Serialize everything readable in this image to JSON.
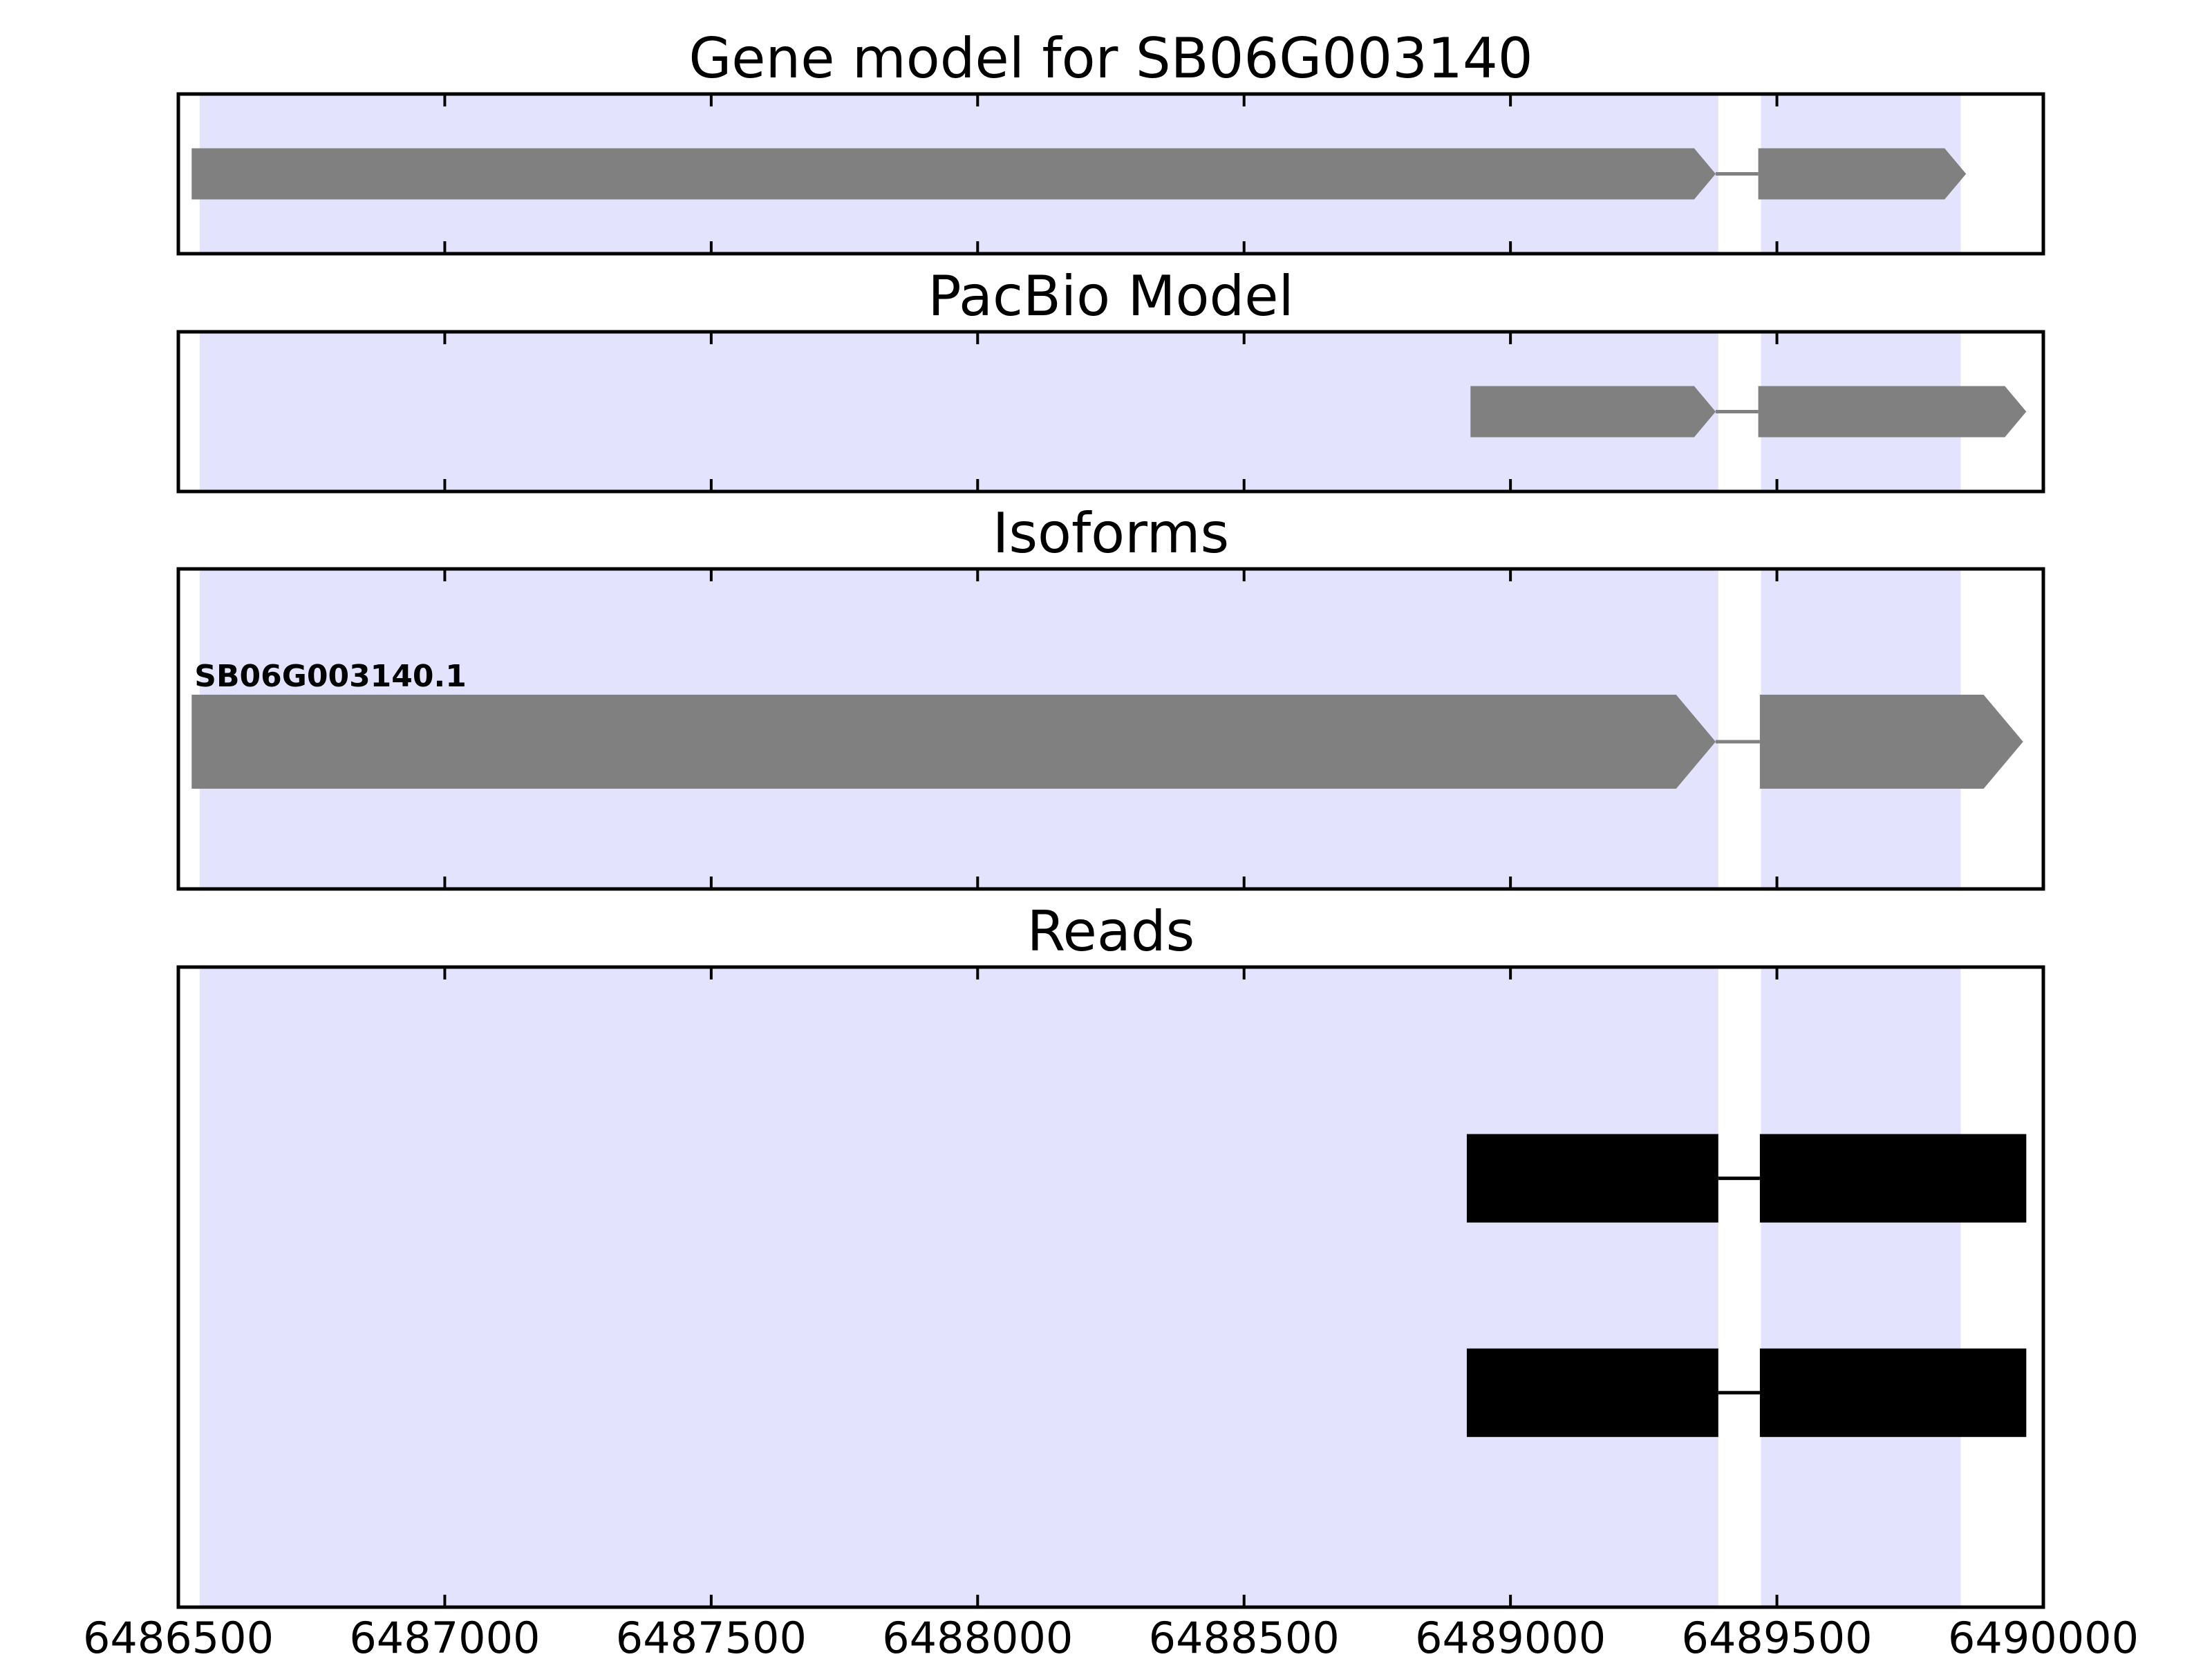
{
  "chart_data": {
    "type": "gene-model",
    "x_range": [
      6486500,
      6490000
    ],
    "x_ticks": [
      6486500,
      6487000,
      6487500,
      6488000,
      6488500,
      6489000,
      6489500,
      6490000
    ],
    "x_tick_labels": [
      "6486500",
      "6487000",
      "6487500",
      "6488000",
      "6488500",
      "6489000",
      "6489500",
      "6490000"
    ],
    "grid": false,
    "shaded_regions": [
      {
        "start": 6486540,
        "end": 6489390
      },
      {
        "start": 6489470,
        "end": 6489845
      }
    ],
    "colors": {
      "shade": "#e3e3fd",
      "feature": "#808080",
      "read": "#000000",
      "axis": "#000000"
    },
    "panels": [
      {
        "title": "Gene model for SB06G003140",
        "features": [
          {
            "exons": [
              [
                6486525,
                6489385
              ],
              [
                6489465,
                6489855
              ]
            ],
            "label": ""
          }
        ]
      },
      {
        "title": "PacBio Model",
        "features": [
          {
            "exons": [
              [
                6488925,
                6489385
              ],
              [
                6489465,
                6489968
              ]
            ],
            "label": ""
          }
        ]
      },
      {
        "title": "Isoforms",
        "features": [
          {
            "exons": [
              [
                6486525,
                6489385
              ],
              [
                6489468,
                6489962
              ]
            ],
            "label": "SB06G003140.1"
          }
        ]
      },
      {
        "title": "Reads",
        "features": [
          {
            "exons": [
              [
                6488918,
                6489390
              ],
              [
                6489468,
                6489968
              ]
            ],
            "label": ""
          },
          {
            "exons": [
              [
                6488918,
                6489390
              ],
              [
                6489468,
                6489968
              ]
            ],
            "label": ""
          }
        ]
      }
    ]
  }
}
